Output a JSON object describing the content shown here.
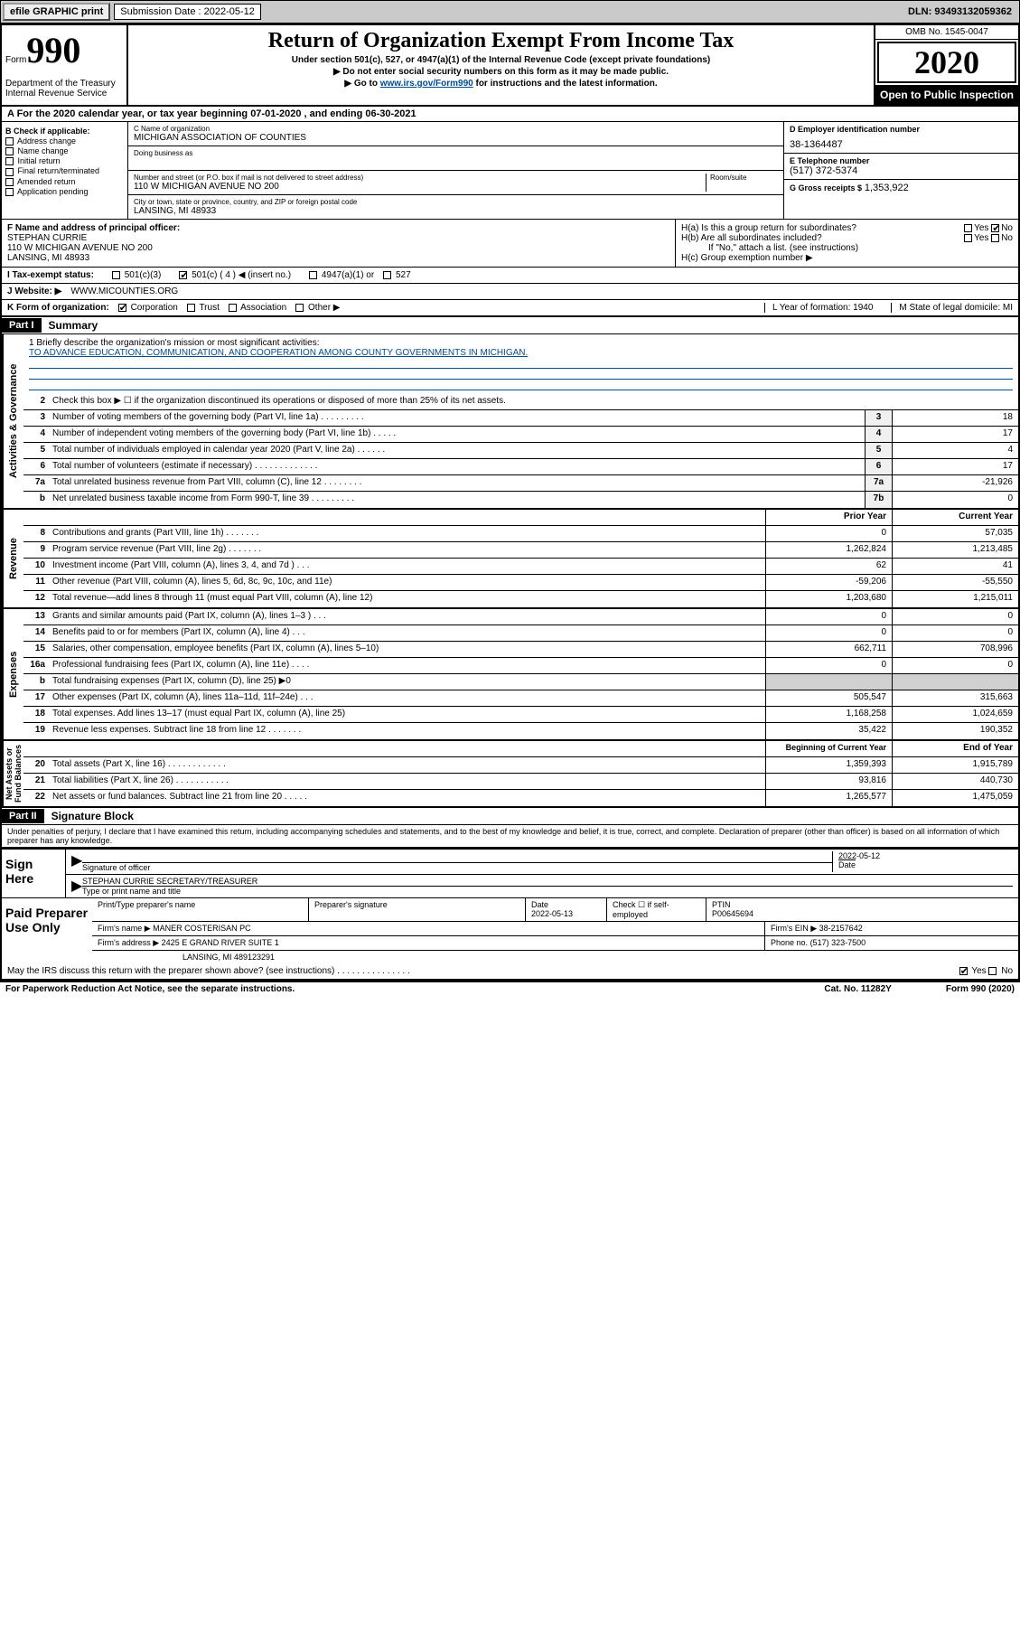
{
  "topbar": {
    "efile": "efile GRAPHIC print",
    "sub_label": "Submission Date : 2022-05-12",
    "dln": "DLN: 93493132059362"
  },
  "header": {
    "form_label": "Form",
    "form_num": "990",
    "dept": "Department of the Treasury\nInternal Revenue Service",
    "title": "Return of Organization Exempt From Income Tax",
    "subtitle": "Under section 501(c), 527, or 4947(a)(1) of the Internal Revenue Code (except private foundations)",
    "instr1": "▶ Do not enter social security numbers on this form as it may be made public.",
    "instr2_pre": "▶ Go to ",
    "instr2_link": "www.irs.gov/Form990",
    "instr2_post": " for instructions and the latest information.",
    "omb": "OMB No. 1545-0047",
    "year": "2020",
    "inspect": "Open to Public Inspection"
  },
  "row_a": "A For the 2020 calendar year, or tax year beginning 07-01-2020    , and ending 06-30-2021",
  "col_b": {
    "header": "B Check if applicable:",
    "items": [
      "Address change",
      "Name change",
      "Initial return",
      "Final return/terminated",
      "Amended return",
      "Application pending"
    ]
  },
  "col_c": {
    "name_lbl": "C Name of organization",
    "name": "MICHIGAN ASSOCIATION OF COUNTIES",
    "dba_lbl": "Doing business as",
    "addr_lbl": "Number and street (or P.O. box if mail is not delivered to street address)",
    "room_lbl": "Room/suite",
    "addr": "110 W MICHIGAN AVENUE NO 200",
    "city_lbl": "City or town, state or province, country, and ZIP or foreign postal code",
    "city": "LANSING, MI  48933"
  },
  "col_d": {
    "ein_lbl": "D Employer identification number",
    "ein": "38-1364487",
    "phone_lbl": "E Telephone number",
    "phone": "(517) 372-5374",
    "gross_lbl": "G Gross receipts $",
    "gross": "1,353,922"
  },
  "col_f": {
    "lbl": "F Name and address of principal officer:",
    "name": "STEPHAN CURRIE",
    "addr": "110 W MICHIGAN AVENUE NO 200\nLANSING, MI  48933"
  },
  "col_h": {
    "ha": "H(a)  Is this a group return for subordinates?",
    "hb": "H(b)  Are all subordinates included?",
    "hb_note": "If \"No,\" attach a list. (see instructions)",
    "hc": "H(c)  Group exemption number ▶"
  },
  "row_i": {
    "lbl": "I  Tax-exempt status:",
    "opts": [
      "501(c)(3)",
      "501(c) ( 4 ) ◀ (insert no.)",
      "4947(a)(1) or",
      "527"
    ]
  },
  "row_j": {
    "lbl": "J  Website: ▶",
    "val": "WWW.MICOUNTIES.ORG"
  },
  "row_k": {
    "lbl": "K Form of organization:",
    "opts": [
      "Corporation",
      "Trust",
      "Association",
      "Other ▶"
    ],
    "l": "L Year of formation: 1940",
    "m": "M State of legal domicile: MI"
  },
  "part1": {
    "header": "Part I",
    "title": "Summary"
  },
  "side_labels": {
    "gov": "Activities & Governance",
    "rev": "Revenue",
    "exp": "Expenses",
    "net": "Net Assets or\nFund Balances"
  },
  "mission": {
    "lbl": "1  Briefly describe the organization's mission or most significant activities:",
    "text": "TO ADVANCE EDUCATION, COMMUNICATION, AND COOPERATION AMONG COUNTY GOVERNMENTS IN MICHIGAN."
  },
  "lines_gov": [
    {
      "n": "2",
      "d": "Check this box ▶ ☐  if the organization discontinued its operations or disposed of more than 25% of its net assets.",
      "box": "",
      "v": ""
    },
    {
      "n": "3",
      "d": "Number of voting members of the governing body (Part VI, line 1a)   .   .   .   .   .   .   .   .   .",
      "box": "3",
      "v": "18"
    },
    {
      "n": "4",
      "d": "Number of independent voting members of the governing body (Part VI, line 1b)   .   .   .   .   .",
      "box": "4",
      "v": "17"
    },
    {
      "n": "5",
      "d": "Total number of individuals employed in calendar year 2020 (Part V, line 2a)    .   .   .   .   .   .",
      "box": "5",
      "v": "4"
    },
    {
      "n": "6",
      "d": "Total number of volunteers (estimate if necessary)    .   .   .   .   .   .   .   .   .   .   .   .   .",
      "box": "6",
      "v": "17"
    },
    {
      "n": "7a",
      "d": "Total unrelated business revenue from Part VIII, column (C), line 12    .   .   .   .   .   .   .   .",
      "box": "7a",
      "v": "-21,926"
    },
    {
      "n": "b",
      "d": "Net unrelated business taxable income from Form 990-T, line 39    .   .   .   .   .   .   .   .   .",
      "box": "7b",
      "v": "0"
    }
  ],
  "col_headers": {
    "prior": "Prior Year",
    "current": "Current Year"
  },
  "lines_rev": [
    {
      "n": "8",
      "d": "Contributions and grants (Part VIII, line 1h)    .   .   .   .   .   .   .",
      "p": "0",
      "c": "57,035"
    },
    {
      "n": "9",
      "d": "Program service revenue (Part VIII, line 2g)    .   .   .   .   .   .   .",
      "p": "1,262,824",
      "c": "1,213,485"
    },
    {
      "n": "10",
      "d": "Investment income (Part VIII, column (A), lines 3, 4, and 7d )    .   .   .",
      "p": "62",
      "c": "41"
    },
    {
      "n": "11",
      "d": "Other revenue (Part VIII, column (A), lines 5, 6d, 8c, 9c, 10c, and 11e)",
      "p": "-59,206",
      "c": "-55,550"
    },
    {
      "n": "12",
      "d": "Total revenue—add lines 8 through 11 (must equal Part VIII, column (A), line 12)",
      "p": "1,203,680",
      "c": "1,215,011"
    }
  ],
  "lines_exp": [
    {
      "n": "13",
      "d": "Grants and similar amounts paid (Part IX, column (A), lines 1–3 )    .   .   .",
      "p": "0",
      "c": "0"
    },
    {
      "n": "14",
      "d": "Benefits paid to or for members (Part IX, column (A), line 4)    .   .   .",
      "p": "0",
      "c": "0"
    },
    {
      "n": "15",
      "d": "Salaries, other compensation, employee benefits (Part IX, column (A), lines 5–10)",
      "p": "662,711",
      "c": "708,996"
    },
    {
      "n": "16a",
      "d": "Professional fundraising fees (Part IX, column (A), line 11e)    .   .   .   .",
      "p": "0",
      "c": "0"
    },
    {
      "n": "b",
      "d": "Total fundraising expenses (Part IX, column (D), line 25) ▶0",
      "p": "",
      "c": "",
      "shaded": true
    },
    {
      "n": "17",
      "d": "Other expenses (Part IX, column (A), lines 11a–11d, 11f–24e)    .   .   .",
      "p": "505,547",
      "c": "315,663"
    },
    {
      "n": "18",
      "d": "Total expenses. Add lines 13–17 (must equal Part IX, column (A), line 25)",
      "p": "1,168,258",
      "c": "1,024,659"
    },
    {
      "n": "19",
      "d": "Revenue less expenses. Subtract line 18 from line 12    .   .   .   .   .   .   .",
      "p": "35,422",
      "c": "190,352"
    }
  ],
  "col_headers2": {
    "begin": "Beginning of Current Year",
    "end": "End of Year"
  },
  "lines_net": [
    {
      "n": "20",
      "d": "Total assets (Part X, line 16)    .   .   .   .   .   .   .   .   .   .   .   .",
      "p": "1,359,393",
      "c": "1,915,789"
    },
    {
      "n": "21",
      "d": "Total liabilities (Part X, line 26)    .   .   .   .   .   .   .   .   .   .   .",
      "p": "93,816",
      "c": "440,730"
    },
    {
      "n": "22",
      "d": "Net assets or fund balances. Subtract line 21 from line 20    .   .   .   .   .",
      "p": "1,265,577",
      "c": "1,475,059"
    }
  ],
  "part2": {
    "header": "Part II",
    "title": "Signature Block"
  },
  "perjury": "Under penalties of perjury, I declare that I have examined this return, including accompanying schedules and statements, and to the best of my knowledge and belief, it is true, correct, and complete. Declaration of preparer (other than officer) is based on all information of which preparer has any knowledge.",
  "sign": {
    "label": "Sign Here",
    "sig_lbl": "Signature of officer",
    "date": "2022-05-12",
    "date_lbl": "Date",
    "name": "STEPHAN CURRIE  SECRETARY/TREASURER",
    "name_lbl": "Type or print name and title"
  },
  "prep": {
    "label": "Paid Preparer Use Only",
    "h1": "Print/Type preparer's name",
    "h2": "Preparer's signature",
    "h3": "Date",
    "date": "2022-05-13",
    "h4": "Check ☐ if self-employed",
    "h5": "PTIN",
    "ptin": "P00645694",
    "firm_lbl": "Firm's name    ▶",
    "firm": "MANER COSTERISAN PC",
    "ein_lbl": "Firm's EIN ▶",
    "ein": "38-2157642",
    "addr_lbl": "Firm's address ▶",
    "addr": "2425 E GRAND RIVER SUITE 1",
    "addr2": "LANSING, MI  489123291",
    "phone_lbl": "Phone no.",
    "phone": "(517) 323-7500"
  },
  "discuss": "May the IRS discuss this return with the preparer shown above? (see instructions)    .   .   .   .   .   .   .   .   .   .   .   .   .   .   .",
  "footer": {
    "left": "For Paperwork Reduction Act Notice, see the separate instructions.",
    "mid": "Cat. No. 11282Y",
    "right": "Form 990 (2020)"
  }
}
